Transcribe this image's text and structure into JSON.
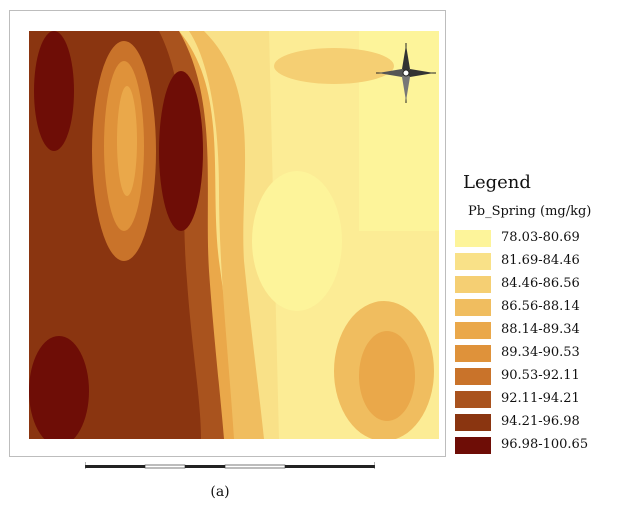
{
  "legend": {
    "title": "Legend",
    "subtitle": "Pb_Spring (mg/kg)",
    "classes": [
      {
        "label": "78.03-80.69",
        "color": "#fdf49a"
      },
      {
        "label": "81.69-84.46",
        "color": "#f9e188"
      },
      {
        "label": "84.46-86.56",
        "color": "#f5cf73"
      },
      {
        "label": "86.56-88.14",
        "color": "#f0bd5f"
      },
      {
        "label": "88.14-89.34",
        "color": "#eaa84a"
      },
      {
        "label": "89.34-90.53",
        "color": "#df923a"
      },
      {
        "label": "90.53-92.11",
        "color": "#c9732a"
      },
      {
        "label": "92.11-94.21",
        "color": "#a9531e"
      },
      {
        "label": "94.21-96.98",
        "color": "#8a3510"
      },
      {
        "label": "96.98-100.65",
        "color": "#6e0d06"
      }
    ]
  },
  "north_arrow": {
    "icon": "compass-rose-icon"
  },
  "caption": "(a)"
}
